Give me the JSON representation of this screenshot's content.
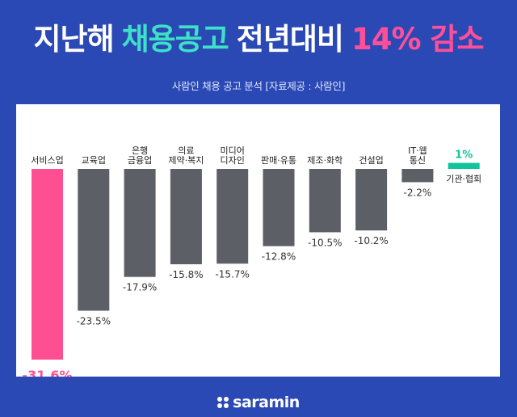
{
  "title": {
    "part1": "지난해",
    "part2": "채용공고",
    "part3": "전년대비",
    "part4": "14% 감소"
  },
  "subtitle": "사람인 채용 공고 분석 [자료제공 : 사람인]",
  "colors": {
    "title_white": "#ffffff",
    "title_mint": "#3ee0c8",
    "title_pink": "#ff4f9a",
    "bar_highlight": "#ff4f93",
    "bar_neutral": "#5d5f66",
    "bar_positive": "#12c49a",
    "label_highlight": "#ff4f93",
    "label_positive": "#12c49a",
    "label_neutral": "#333333"
  },
  "chart_data": {
    "type": "bar",
    "categories": [
      [
        "서비스업"
      ],
      [
        "교육업"
      ],
      [
        "은행",
        "금융업"
      ],
      [
        "의료",
        "제약·복지"
      ],
      [
        "미디어",
        "디자인"
      ],
      [
        "판매·유통"
      ],
      [
        "제조·화학"
      ],
      [
        "건설업"
      ],
      [
        "IT·웹",
        "통신"
      ],
      [
        "기관·협회"
      ]
    ],
    "values": [
      -31.6,
      -23.5,
      -17.9,
      -15.8,
      -15.7,
      -12.8,
      -10.5,
      -10.2,
      -2.2,
      1
    ],
    "value_labels": [
      "-31.6%",
      "-23.5%",
      "-17.9%",
      "-15.8%",
      "-15.7%",
      "-12.8%",
      "-10.5%",
      "-10.2%",
      "-2.2%",
      "1%"
    ],
    "highlight_index": 0,
    "title": "",
    "xlabel": "",
    "ylabel": "",
    "ylim": [
      -32,
      2
    ],
    "grid": false,
    "legend": "none"
  },
  "footer": {
    "logo_text": "saramin"
  }
}
